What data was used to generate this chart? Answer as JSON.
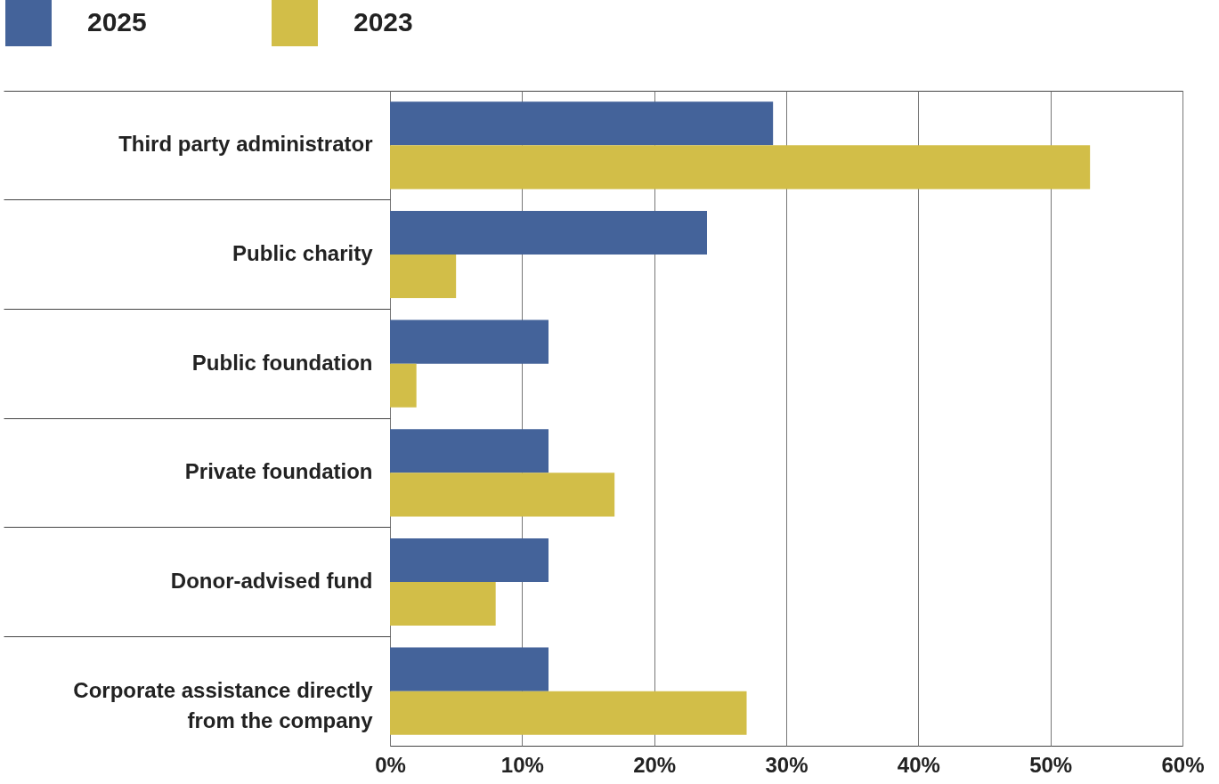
{
  "chart_data": {
    "type": "bar",
    "orientation": "horizontal",
    "categories": [
      "Third party administrator",
      "Public charity",
      "Public foundation",
      "Private foundation",
      "Donor-advised fund",
      "Corporate assistance directly from the company"
    ],
    "series": [
      {
        "name": "2025",
        "color": "#44639a",
        "values": [
          29,
          24,
          12,
          12,
          12,
          12
        ]
      },
      {
        "name": "2023",
        "color": "#d2be48",
        "values": [
          53,
          5,
          2,
          17,
          8,
          27
        ]
      }
    ],
    "xlim": [
      0,
      60
    ],
    "xticks": [
      {
        "value": 0,
        "label": "0%"
      },
      {
        "value": 10,
        "label": "10%"
      },
      {
        "value": 20,
        "label": "20%"
      },
      {
        "value": 30,
        "label": "30%"
      },
      {
        "value": 40,
        "label": "40%"
      },
      {
        "value": 50,
        "label": "50%"
      },
      {
        "value": 60,
        "label": "60%"
      }
    ],
    "grid": true,
    "legend": "top left"
  }
}
